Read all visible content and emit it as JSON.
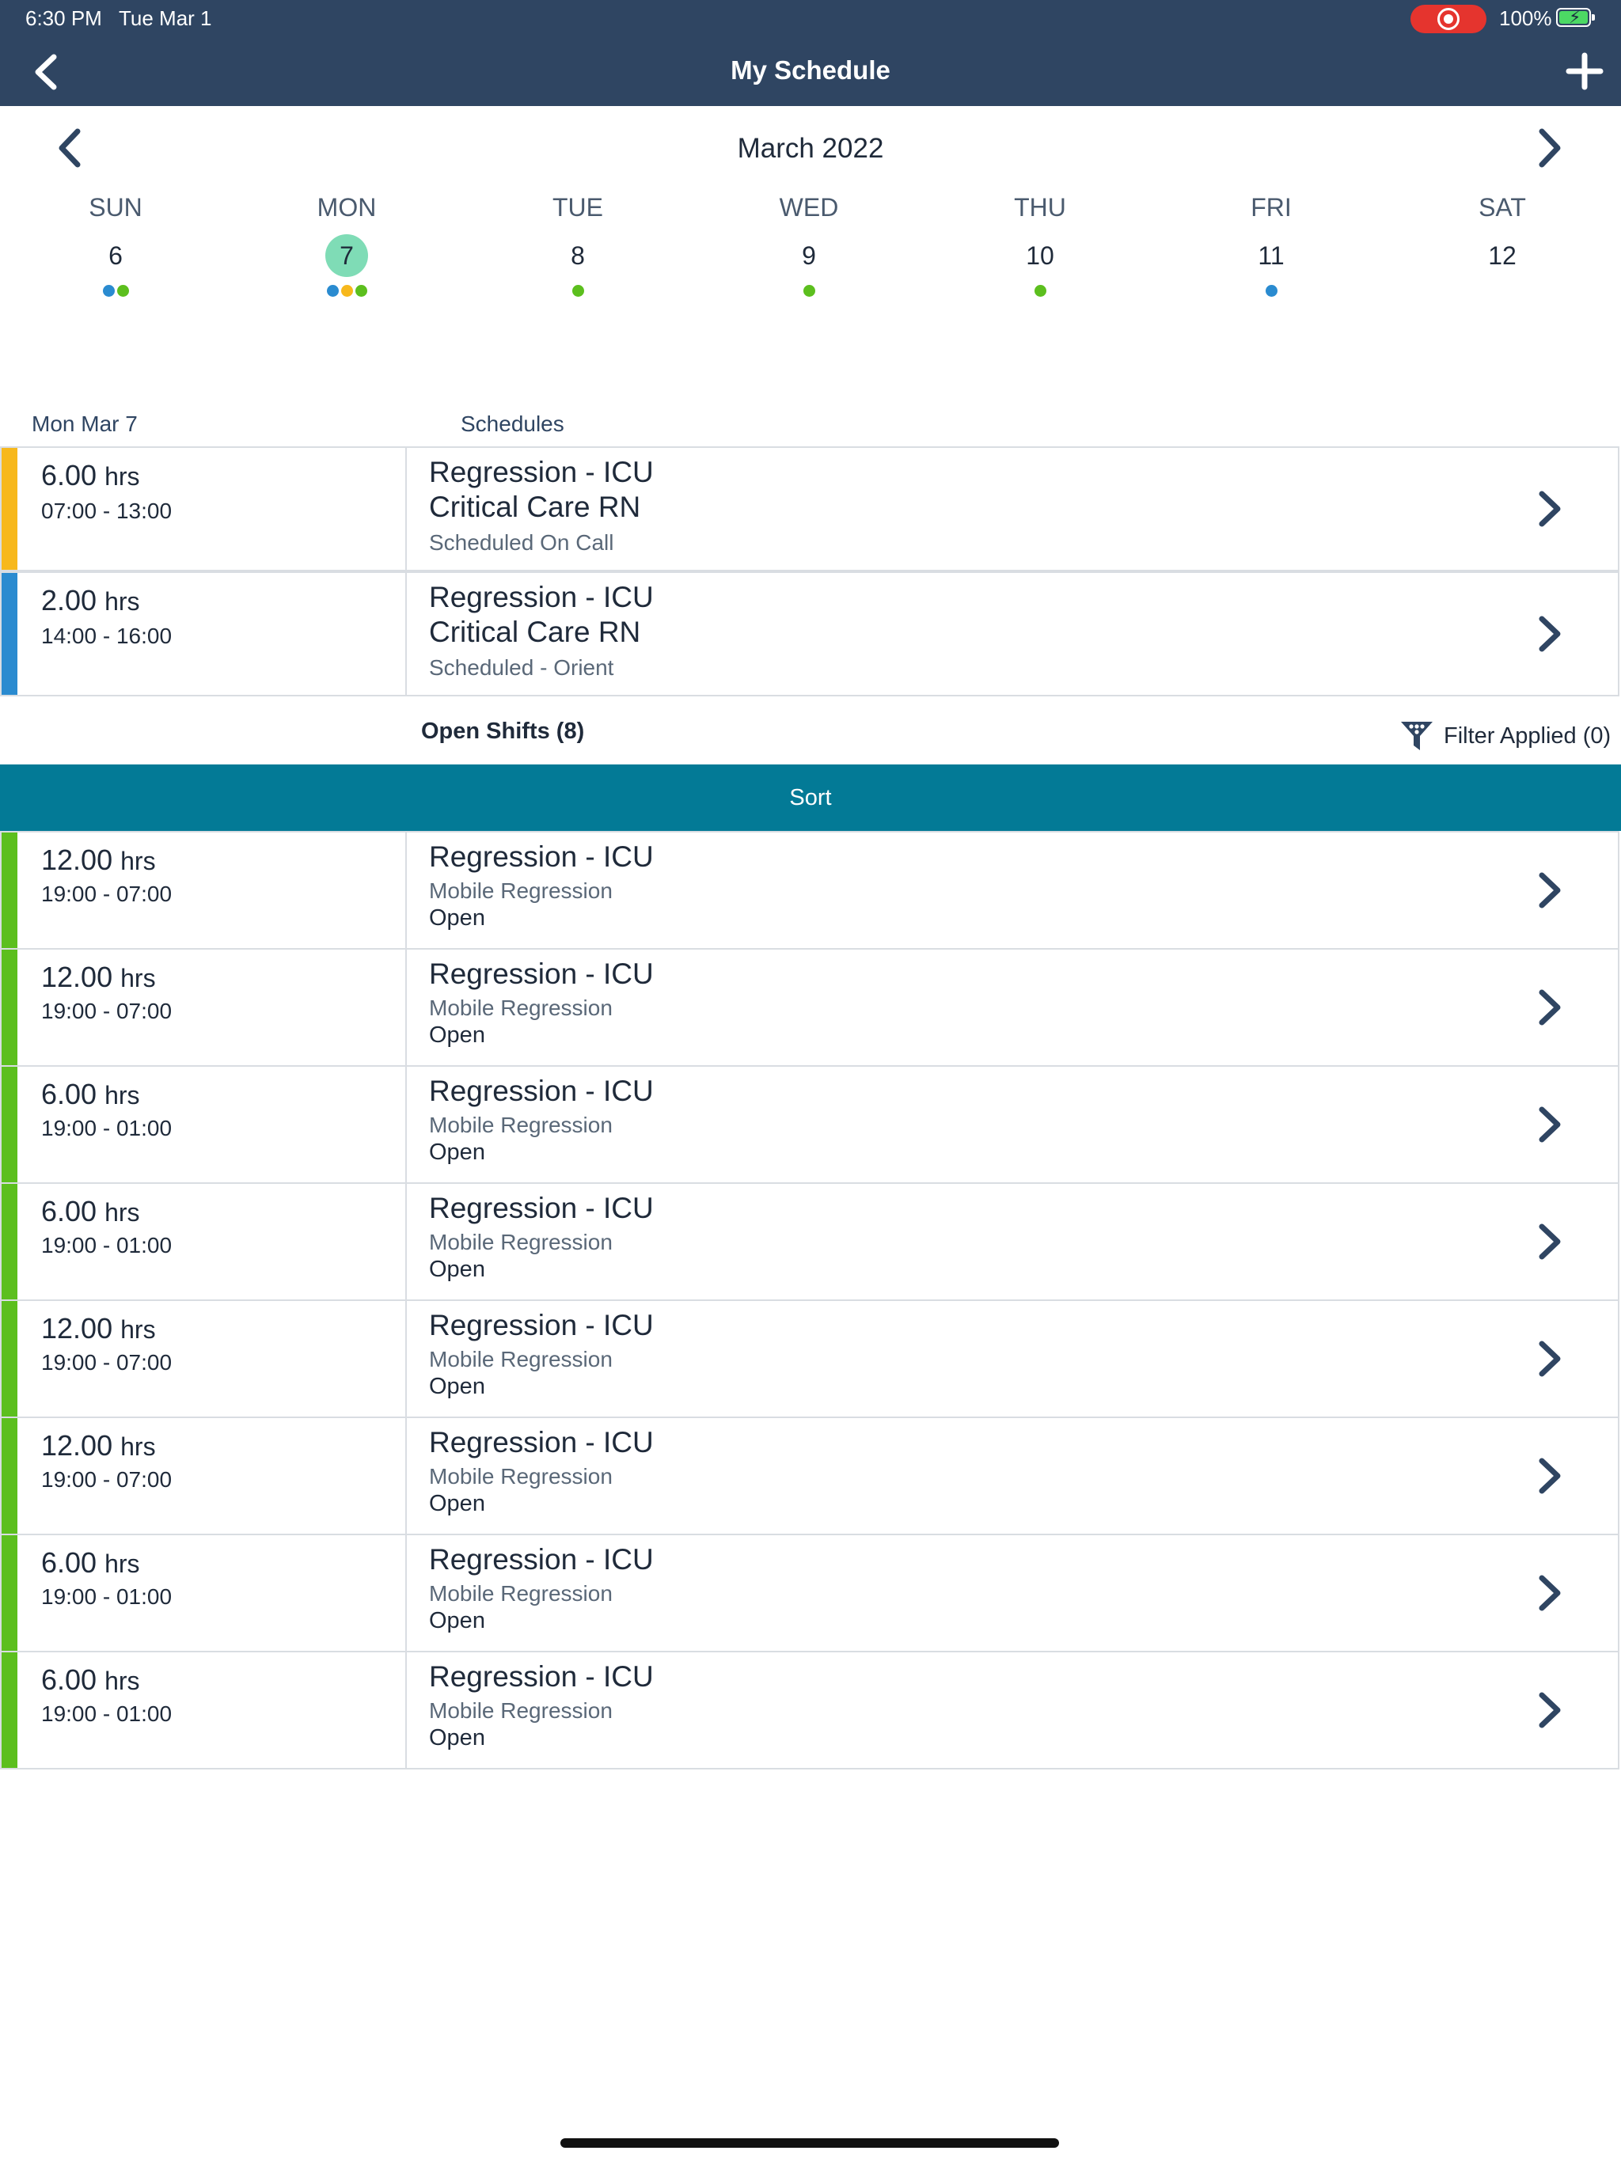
{
  "status_bar": {
    "time": "6:30 PM",
    "date": "Tue Mar 1",
    "battery": "100%"
  },
  "nav": {
    "title": "My Schedule",
    "back_icon": "chevron-left-icon",
    "add_icon": "plus-icon"
  },
  "calendar": {
    "month": "March 2022",
    "days": [
      {
        "name": "SUN",
        "num": "6",
        "selected": false,
        "dots": [
          "#2a8bd0",
          "#5cbf1e"
        ]
      },
      {
        "name": "MON",
        "num": "7",
        "selected": true,
        "dots": [
          "#2a8bd0",
          "#f7b81c",
          "#5cbf1e"
        ]
      },
      {
        "name": "TUE",
        "num": "8",
        "selected": false,
        "dots": [
          "#5cbf1e"
        ]
      },
      {
        "name": "WED",
        "num": "9",
        "selected": false,
        "dots": [
          "#5cbf1e"
        ]
      },
      {
        "name": "THU",
        "num": "10",
        "selected": false,
        "dots": [
          "#5cbf1e"
        ]
      },
      {
        "name": "FRI",
        "num": "11",
        "selected": false,
        "dots": [
          "#2a8bd0"
        ]
      },
      {
        "name": "SAT",
        "num": "12",
        "selected": false,
        "dots": []
      }
    ]
  },
  "schedules": {
    "date_label": "Mon Mar 7",
    "header": "Schedules",
    "items": [
      {
        "hours": "6.00",
        "unit": "hrs",
        "time": "07:00 - 13:00",
        "title": "Regression - ICU",
        "role": "Critical Care RN",
        "status": "Scheduled On Call",
        "color": "#f7b81c"
      },
      {
        "hours": "2.00",
        "unit": "hrs",
        "time": "14:00 - 16:00",
        "title": "Regression - ICU",
        "role": "Critical Care RN",
        "status": "Scheduled - Orient",
        "color": "#2a8bd0"
      }
    ]
  },
  "open_shifts": {
    "label": "Open Shifts (8)",
    "filter_label": "Filter Applied (0)",
    "sort_label": "Sort",
    "accent_color": "#5cbf1e",
    "items": [
      {
        "hours": "12.00",
        "unit": "hrs",
        "time": "19:00 - 07:00",
        "title": "Regression - ICU",
        "sub": "Mobile Regression",
        "status": "Open"
      },
      {
        "hours": "12.00",
        "unit": "hrs",
        "time": "19:00 - 07:00",
        "title": "Regression - ICU",
        "sub": "Mobile Regression",
        "status": "Open"
      },
      {
        "hours": "6.00",
        "unit": "hrs",
        "time": "19:00 - 01:00",
        "title": "Regression - ICU",
        "sub": "Mobile Regression",
        "status": "Open"
      },
      {
        "hours": "6.00",
        "unit": "hrs",
        "time": "19:00 - 01:00",
        "title": "Regression - ICU",
        "sub": "Mobile Regression",
        "status": "Open"
      },
      {
        "hours": "12.00",
        "unit": "hrs",
        "time": "19:00 - 07:00",
        "title": "Regression - ICU",
        "sub": "Mobile Regression",
        "status": "Open"
      },
      {
        "hours": "12.00",
        "unit": "hrs",
        "time": "19:00 - 07:00",
        "title": "Regression - ICU",
        "sub": "Mobile Regression",
        "status": "Open"
      },
      {
        "hours": "6.00",
        "unit": "hrs",
        "time": "19:00 - 01:00",
        "title": "Regression - ICU",
        "sub": "Mobile Regression",
        "status": "Open"
      },
      {
        "hours": "6.00",
        "unit": "hrs",
        "time": "19:00 - 01:00",
        "title": "Regression - ICU",
        "sub": "Mobile Regression",
        "status": "Open"
      }
    ]
  }
}
